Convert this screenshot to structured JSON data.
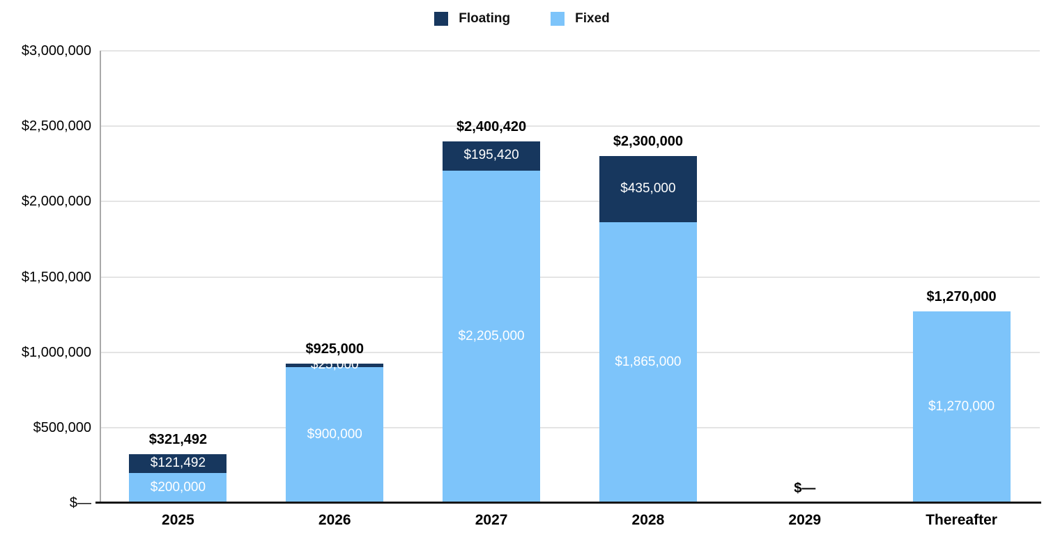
{
  "legend": {
    "position": "top",
    "items": [
      {
        "label": "Floating",
        "color": "#17375E"
      },
      {
        "label": "Fixed",
        "color": "#7DC4FA"
      }
    ]
  },
  "chart_data": {
    "type": "bar",
    "stacked": true,
    "title": "",
    "categories": [
      "2025",
      "2026",
      "2027",
      "2028",
      "2029",
      "Thereafter"
    ],
    "series": [
      {
        "name": "Fixed",
        "color": "#7DC4FA",
        "values": [
          200000,
          900000,
          2205000,
          1865000,
          0,
          1270000
        ],
        "data_labels": [
          "$200,000",
          "$900,000",
          "$2,205,000",
          "$1,865,000",
          "",
          "$1,270,000"
        ],
        "label_color": "#FFFFFF"
      },
      {
        "name": "Floating",
        "color": "#17375E",
        "values": [
          121492,
          25000,
          195420,
          435000,
          0,
          0
        ],
        "data_labels": [
          "$121,492",
          "$25,000",
          "$195,420",
          "$435,000",
          "",
          ""
        ],
        "label_color": "#FFFFFF"
      }
    ],
    "totals": [
      321492,
      925000,
      2400420,
      2300000,
      0,
      1270000
    ],
    "total_labels": [
      "$321,492",
      "$925,000",
      "$2,400,420",
      "$2,300,000",
      "$—",
      "$1,270,000"
    ],
    "y_axis": {
      "min": 0,
      "max": 3000000,
      "step": 500000,
      "tick_labels": [
        "$—",
        "$500,000",
        "$1,000,000",
        "$1,500,000",
        "$2,000,000",
        "$2,500,000",
        "$3,000,000"
      ]
    },
    "grid": true,
    "gridline_color": "#E4E4E4",
    "axis_line_color": "#A9A9A9",
    "baseline_color": "#161616",
    "legend_position": "top"
  }
}
